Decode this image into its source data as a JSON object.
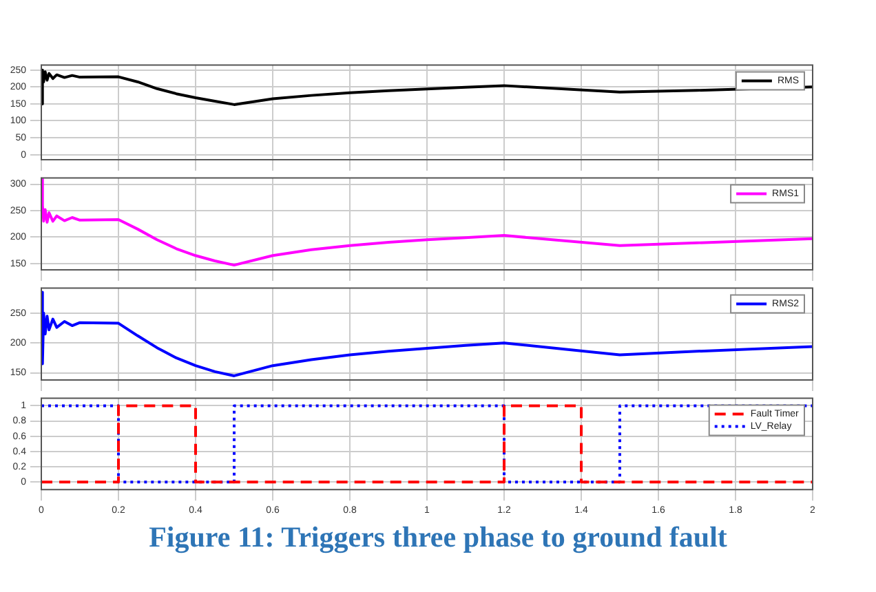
{
  "chart_data": [
    {
      "type": "line",
      "xlim": [
        0,
        2
      ],
      "xticks": [
        0,
        0.2,
        0.4,
        0.6,
        0.8,
        1,
        1.2,
        1.4,
        1.6,
        1.8,
        2
      ],
      "ylim": [
        -15,
        265
      ],
      "yticks": [
        0,
        50,
        100,
        150,
        200,
        250
      ],
      "grid": true,
      "legend": "top right",
      "tick_labels": "y",
      "marker": "none",
      "series": [
        {
          "name": "RMS",
          "color": "#000000",
          "x": [
            0,
            0.003,
            0.006,
            0.01,
            0.015,
            0.02,
            0.03,
            0.04,
            0.06,
            0.08,
            0.1,
            0.2,
            0.25,
            0.3,
            0.35,
            0.4,
            0.45,
            0.5,
            0.6,
            0.7,
            0.8,
            0.9,
            1.0,
            1.1,
            1.2,
            1.5,
            1.7,
            2.0
          ],
          "values": [
            150,
            250,
            215,
            245,
            220,
            240,
            225,
            236,
            228,
            234,
            229,
            230,
            215,
            195,
            180,
            168,
            158,
            148,
            165,
            175,
            183,
            189,
            194,
            199,
            204,
            185,
            190,
            200
          ]
        }
      ]
    },
    {
      "type": "line",
      "xlim": [
        0,
        2
      ],
      "xticks": [
        0,
        0.2,
        0.4,
        0.6,
        0.8,
        1,
        1.2,
        1.4,
        1.6,
        1.8,
        2
      ],
      "ylim": [
        138,
        312
      ],
      "yticks": [
        150,
        200,
        250,
        300
      ],
      "grid": true,
      "legend": "top right",
      "tick_labels": "y",
      "marker": "none",
      "series": [
        {
          "name": "RMS1",
          "color": "#ff00ff",
          "x": [
            0,
            0.003,
            0.006,
            0.01,
            0.015,
            0.02,
            0.03,
            0.04,
            0.06,
            0.08,
            0.1,
            0.2,
            0.25,
            0.3,
            0.35,
            0.4,
            0.45,
            0.5,
            0.6,
            0.7,
            0.8,
            0.9,
            1.0,
            1.1,
            1.2,
            1.5,
            1.7,
            2.0
          ],
          "values": [
            310,
            260,
            230,
            252,
            228,
            246,
            230,
            240,
            231,
            237,
            232,
            233,
            215,
            195,
            178,
            165,
            155,
            147,
            165,
            176,
            184,
            190,
            195,
            199,
            203,
            184,
            189,
            197
          ]
        }
      ]
    },
    {
      "type": "line",
      "xlim": [
        0,
        2
      ],
      "xticks": [
        0,
        0.2,
        0.4,
        0.6,
        0.8,
        1,
        1.2,
        1.4,
        1.6,
        1.8,
        2
      ],
      "ylim": [
        138,
        292
      ],
      "yticks": [
        150,
        200,
        250
      ],
      "grid": true,
      "legend": "top right",
      "tick_labels": "y",
      "marker": "none",
      "series": [
        {
          "name": "RMS2",
          "color": "#0000ff",
          "x": [
            0,
            0.003,
            0.006,
            0.01,
            0.015,
            0.02,
            0.03,
            0.04,
            0.06,
            0.08,
            0.1,
            0.2,
            0.25,
            0.3,
            0.35,
            0.4,
            0.45,
            0.5,
            0.6,
            0.7,
            0.8,
            0.9,
            1.0,
            1.1,
            1.2,
            1.5,
            1.7,
            2.0
          ],
          "values": [
            285,
            165,
            250,
            215,
            245,
            222,
            240,
            226,
            236,
            229,
            234,
            233,
            212,
            192,
            175,
            162,
            152,
            145,
            162,
            172,
            180,
            186,
            191,
            196,
            200,
            180,
            186,
            194
          ]
        }
      ]
    },
    {
      "type": "line",
      "xlim": [
        0,
        2
      ],
      "xticks": [
        0,
        0.2,
        0.4,
        0.6,
        0.8,
        1,
        1.2,
        1.4,
        1.6,
        1.8,
        2
      ],
      "ylim": [
        -0.1,
        1.1
      ],
      "yticks": [
        0,
        0.2,
        0.4,
        0.6,
        0.8,
        1
      ],
      "grid": true,
      "legend": "top right",
      "marker": "none",
      "series": [
        {
          "name": "Fault Timer",
          "color": "#ff0000",
          "line_style": "dashed",
          "x": [
            0,
            0.2,
            0.2,
            0.4,
            0.4,
            1.2,
            1.2,
            1.4,
            1.4,
            2
          ],
          "values": [
            0,
            0,
            1,
            1,
            0,
            0,
            1,
            1,
            0,
            0
          ]
        },
        {
          "name": "LV_Relay",
          "color": "#0000ff",
          "line_style": "dotted",
          "x": [
            0,
            0.2,
            0.2,
            0.5,
            0.5,
            1.2,
            1.2,
            1.5,
            1.5,
            2
          ],
          "values": [
            1,
            1,
            0,
            0,
            1,
            1,
            0,
            0,
            1,
            1
          ]
        }
      ],
      "annotations": [
        "Figure 11: Triggers three phase to ground fault"
      ]
    }
  ]
}
